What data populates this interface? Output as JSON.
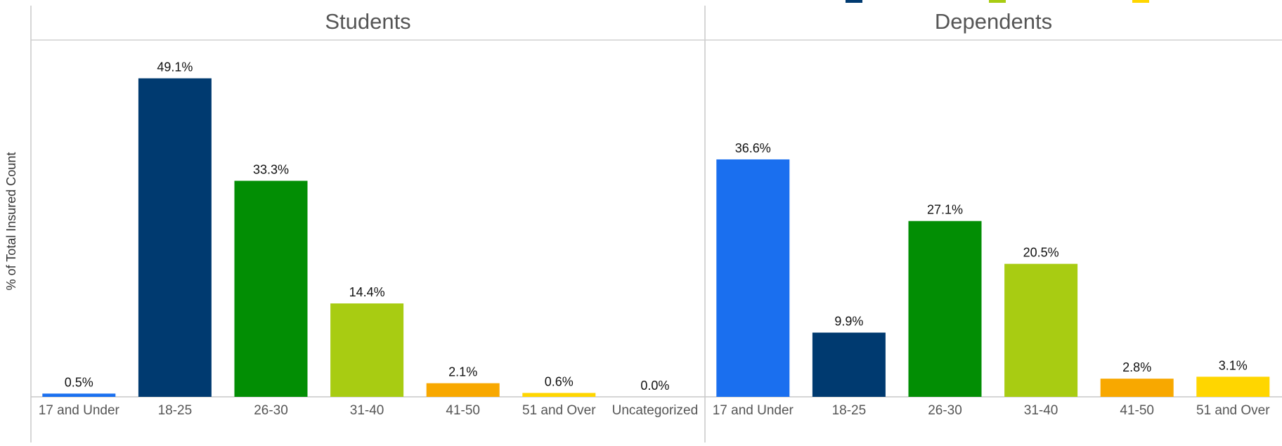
{
  "chart_data": {
    "type": "bar",
    "ylabel": "% of Total Insured Count",
    "ylim": [
      0,
      55
    ],
    "grid": false,
    "legend_swatch_colors": [
      "#003A70",
      "#A8CC12",
      "#FFD600"
    ],
    "panels": [
      {
        "title": "Students",
        "categories": [
          "17 and Under",
          "18-25",
          "26-30",
          "31-40",
          "41-50",
          "51 and Over",
          "Uncategorized"
        ],
        "values": [
          0.5,
          49.1,
          33.3,
          14.4,
          2.1,
          0.6,
          0.0
        ],
        "value_labels": [
          "0.5%",
          "49.1%",
          "33.3%",
          "14.4%",
          "2.1%",
          "0.6%",
          "0.0%"
        ],
        "colors": [
          "#1A6FEF",
          "#003A70",
          "#028E04",
          "#A8CC12",
          "#F8A800",
          "#FFD600",
          "#BBBBBB"
        ]
      },
      {
        "title": "Dependents",
        "categories": [
          "17 and Under",
          "18-25",
          "26-30",
          "31-40",
          "41-50",
          "51 and Over"
        ],
        "values": [
          36.6,
          9.9,
          27.1,
          20.5,
          2.8,
          3.1
        ],
        "value_labels": [
          "36.6%",
          "9.9%",
          "27.1%",
          "20.5%",
          "2.8%",
          "3.1%"
        ],
        "colors": [
          "#1A6FEF",
          "#003A70",
          "#028E04",
          "#A8CC12",
          "#F8A800",
          "#FFD600"
        ]
      }
    ]
  }
}
